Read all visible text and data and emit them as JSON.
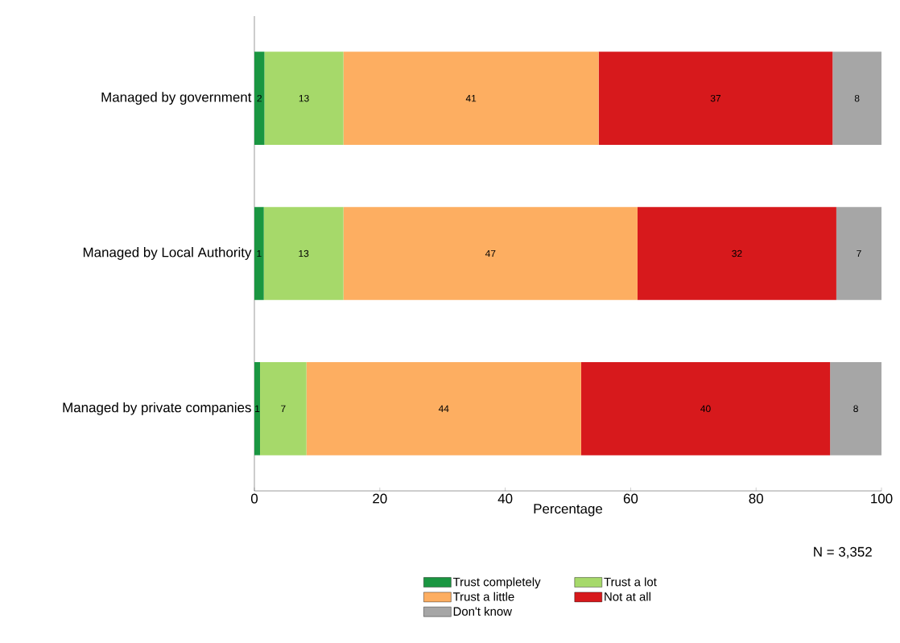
{
  "chart_data": {
    "type": "bar",
    "orientation": "horizontal",
    "stacked": true,
    "categories": [
      "Managed by government",
      "Managed by Local Authority",
      "Managed by private companies"
    ],
    "series": [
      {
        "name": "Trust completely",
        "color": "#1a9641",
        "values": [
          1.6,
          1.5,
          0.9
        ],
        "value_labels": [
          "2",
          "1",
          "1"
        ]
      },
      {
        "name": "Trust a lot",
        "color": "#a6d96a",
        "values": [
          12.6,
          12.7,
          7.4
        ],
        "value_labels": [
          "13",
          "13",
          "7"
        ]
      },
      {
        "name": "Trust a little",
        "color": "#fdae61",
        "values": [
          40.7,
          46.9,
          43.8
        ],
        "value_labels": [
          "41",
          "47",
          "44"
        ]
      },
      {
        "name": "Not at all",
        "color": "#d7191c",
        "values": [
          37.3,
          31.7,
          39.7
        ],
        "value_labels": [
          "37",
          "32",
          "40"
        ]
      },
      {
        "name": "Don't know",
        "color": "#a6a6a6",
        "values": [
          7.8,
          7.2,
          8.2
        ],
        "value_labels": [
          "8",
          "7",
          "8"
        ]
      }
    ],
    "xlim": [
      0,
      100
    ],
    "xticks": [
      0,
      20,
      40,
      60,
      80,
      100
    ],
    "xlabel": "Percentage",
    "annotations": [
      "N = 3,352"
    ],
    "legend": "bottom",
    "grid": false
  }
}
